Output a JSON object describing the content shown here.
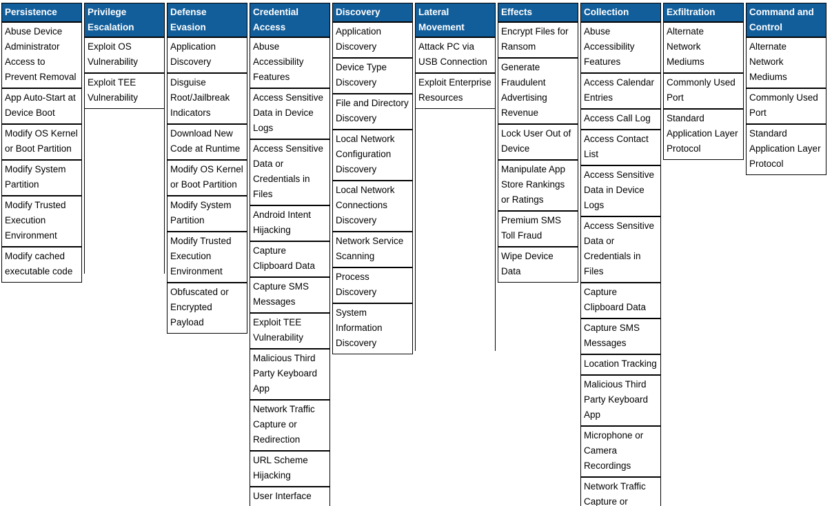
{
  "matrix": {
    "header_color": "#125e9b",
    "header_text_color": "#ffffff",
    "cell_text_color": "#000000",
    "border_color": "#000000",
    "columns": [
      {
        "id": "persistence",
        "label": "Persistence",
        "techniques": [
          "Abuse Device\nAdministrator\nAccess to\nPrevent Removal",
          "App Auto-Start at\nDevice Boot",
          "Modify OS Kernel\nor Boot Partition",
          "Modify System\nPartition",
          "Modify Trusted\nExecution\nEnvironment",
          "Modify cached\nexecutable code"
        ]
      },
      {
        "id": "privilege_escalation",
        "label": "Privilege Escalation",
        "techniques": [
          "Exploit OS\nVulnerability",
          "Exploit TEE\nVulnerability"
        ]
      },
      {
        "id": "defense_evasion",
        "label": "Defense Evasion",
        "techniques": [
          "Application\nDiscovery",
          "Disguise\nRoot/Jailbreak\nIndicators",
          "Download New\nCode at Runtime",
          "Modify OS Kernel\nor Boot Partition",
          "Modify System\nPartition",
          "Modify Trusted\nExecution\nEnvironment",
          "Obfuscated or\nEncrypted\nPayload"
        ]
      },
      {
        "id": "credential_access",
        "label": "Credential Access",
        "techniques": [
          "Abuse\nAccessibility\nFeatures",
          "Access Sensitive\nData in Device\nLogs",
          "Access Sensitive\nData or\nCredentials in\nFiles",
          "Android Intent\nHijacking",
          "Capture\nClipboard Data",
          "Capture SMS\nMessages",
          "Exploit TEE\nVulnerability",
          "Malicious Third\nParty Keyboard\nApp",
          "Network Traffic\nCapture or\nRedirection",
          "URL Scheme\nHijacking",
          "User Interface"
        ]
      },
      {
        "id": "discovery",
        "label": "Discovery",
        "techniques": [
          "Application\nDiscovery",
          "Device Type\nDiscovery",
          "File and Directory\nDiscovery",
          "Local Network\nConfiguration\nDiscovery",
          "Local Network\nConnections\nDiscovery",
          "Network Service\nScanning",
          "Process\nDiscovery",
          "System\nInformation\nDiscovery"
        ]
      },
      {
        "id": "lateral_movement",
        "label": "Lateral Movement",
        "techniques": [
          "Attack PC via\nUSB Connection",
          "Exploit Enterprise\nResources"
        ]
      },
      {
        "id": "effects",
        "label": "Effects",
        "techniques": [
          "Encrypt Files for\nRansom",
          "Generate\nFraudulent\nAdvertising\nRevenue",
          "Lock User Out of\nDevice",
          "Manipulate App\nStore Rankings\nor Ratings",
          "Premium SMS\nToll Fraud",
          "Wipe Device\nData"
        ]
      },
      {
        "id": "collection",
        "label": "Collection",
        "techniques": [
          "Abuse\nAccessibility\nFeatures",
          "Access Calendar\nEntries",
          "Access Call Log",
          "Access Contact\nList",
          "Access Sensitive\nData in Device\nLogs",
          "Access Sensitive\nData or\nCredentials in\nFiles",
          "Capture\nClipboard Data",
          "Capture SMS\nMessages",
          "Location Tracking",
          "Malicious Third\nParty Keyboard\nApp",
          "Microphone or\nCamera\nRecordings",
          "Network Traffic\nCapture or"
        ]
      },
      {
        "id": "exfiltration",
        "label": "Exfiltration",
        "techniques": [
          "Alternate Network\nMediums",
          "Commonly Used\nPort",
          "Standard\nApplication Layer\nProtocol"
        ]
      },
      {
        "id": "command_and_control",
        "label": "Command and Control",
        "techniques": [
          "Alternate Network\nMediums",
          "Commonly Used\nPort",
          "Standard\nApplication Layer\nProtocol"
        ]
      }
    ]
  }
}
